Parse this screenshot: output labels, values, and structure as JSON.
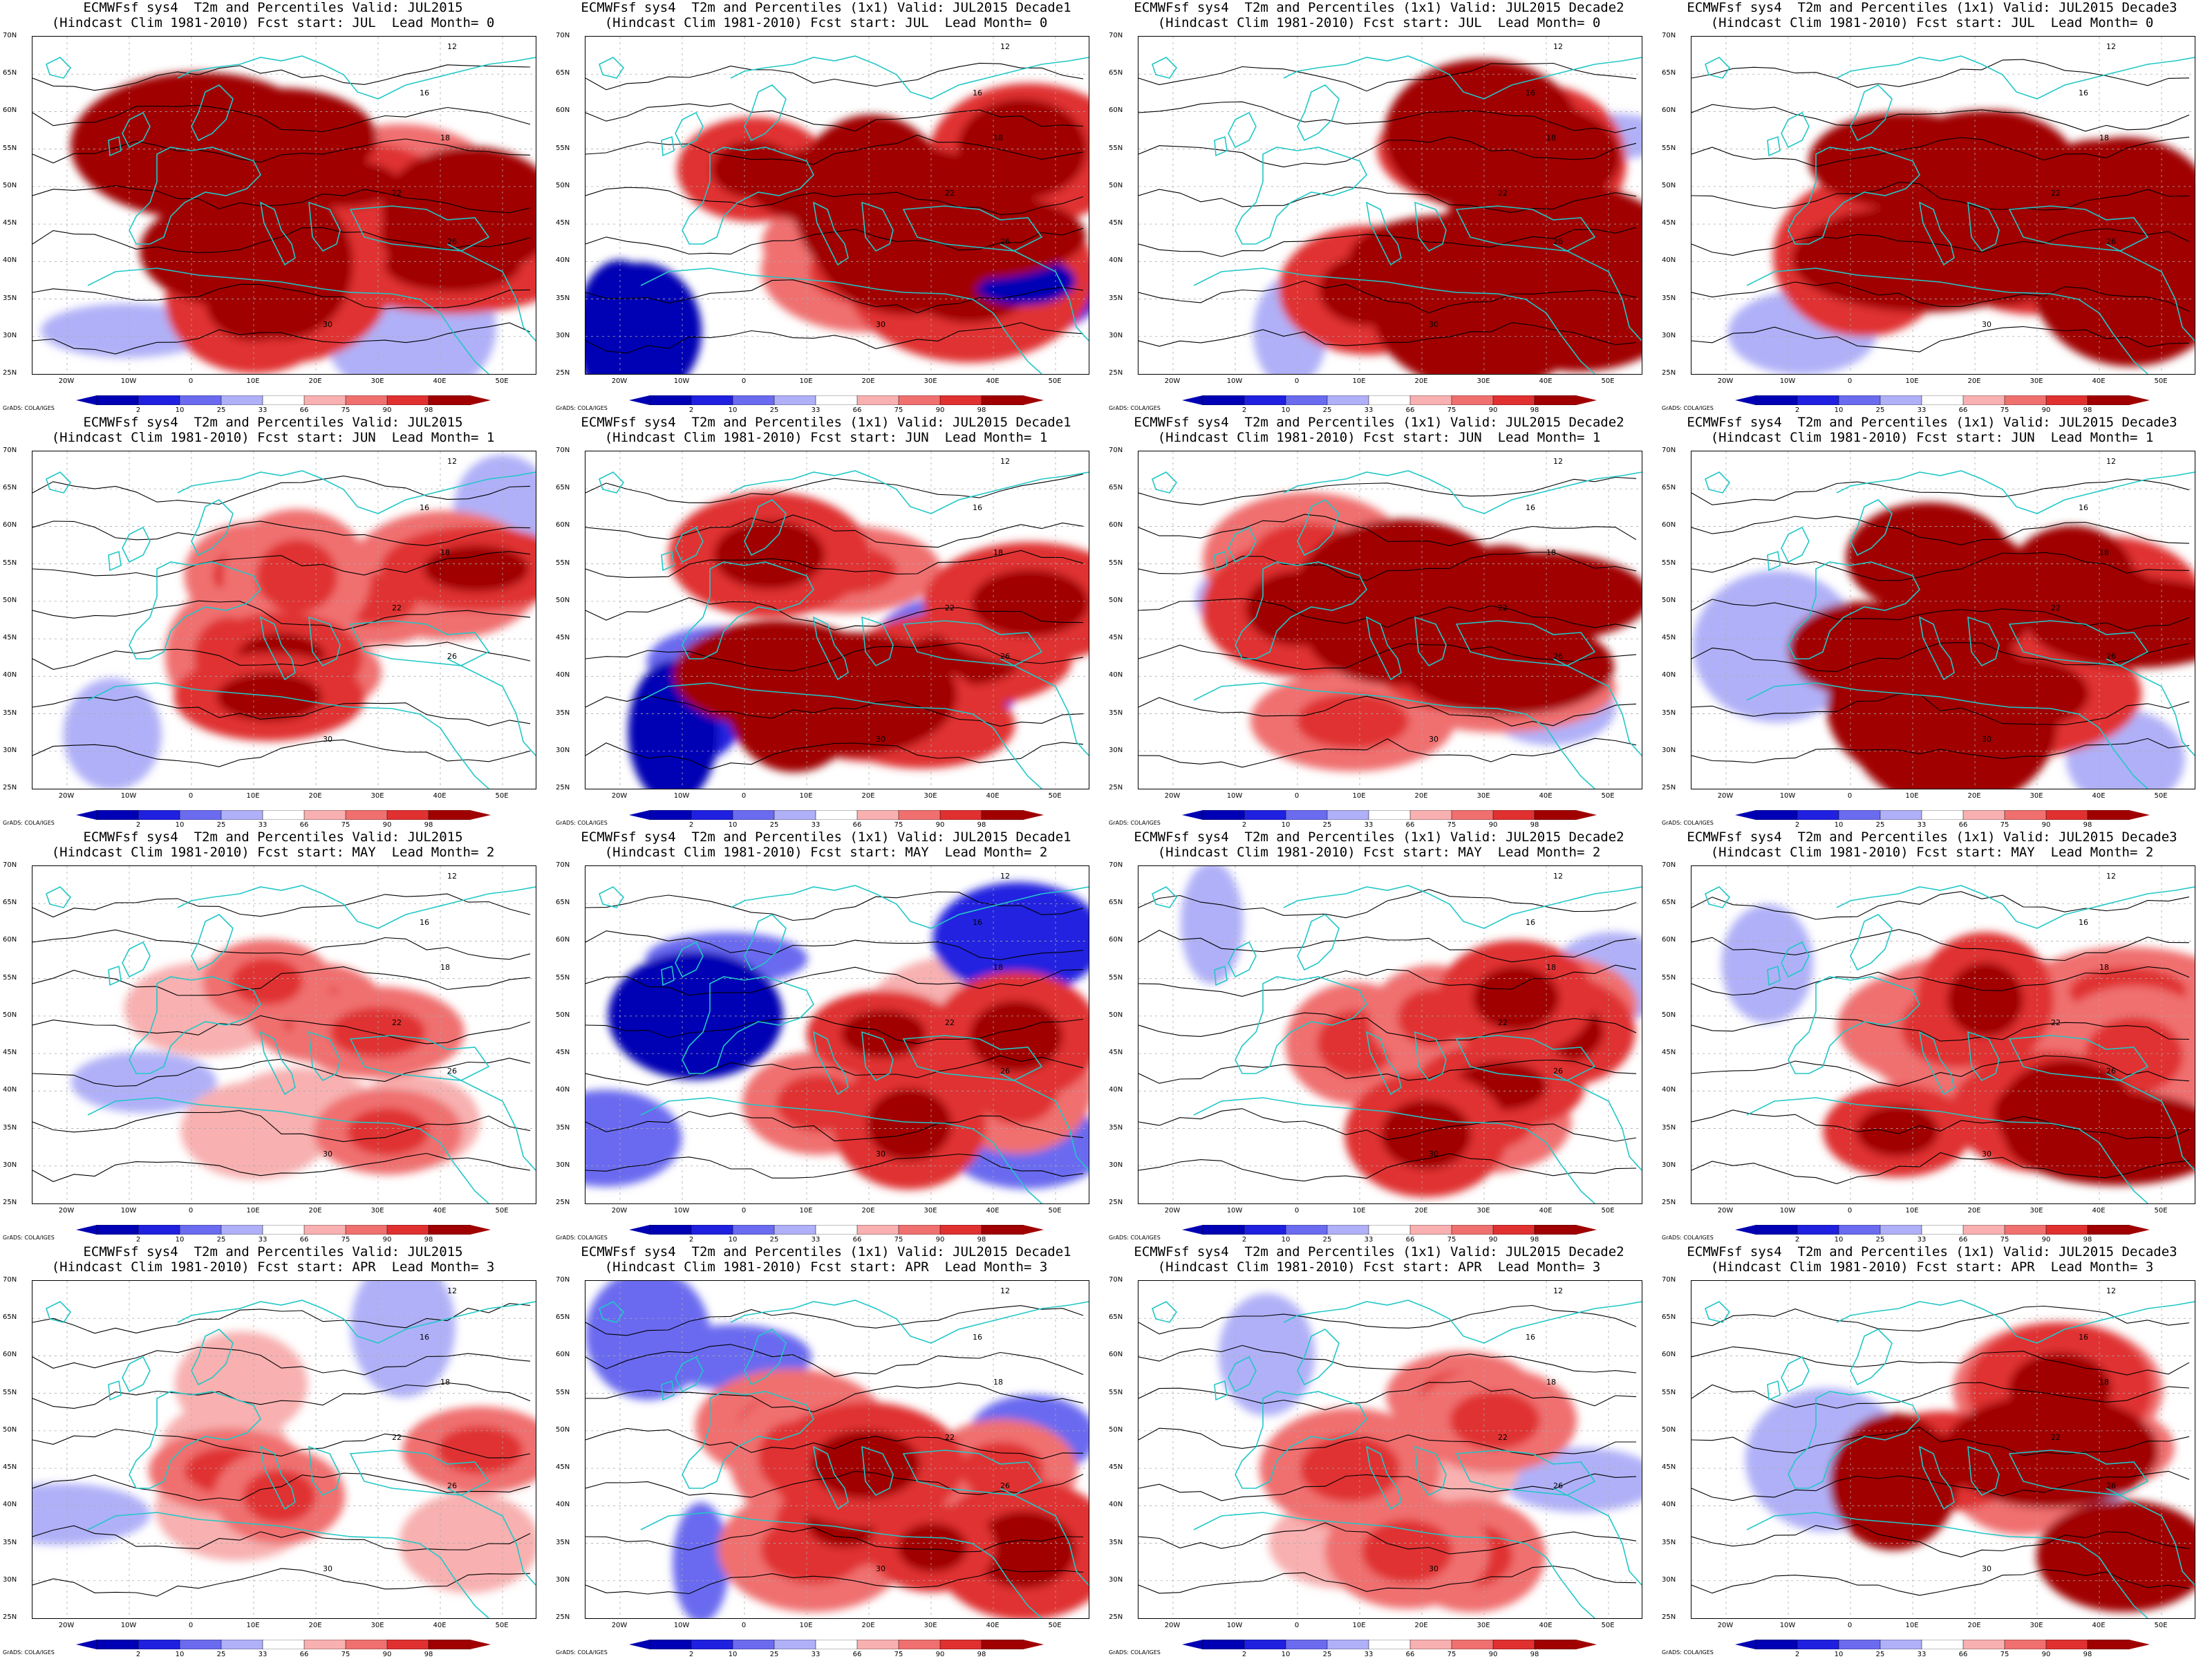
{
  "panels": [
    {
      "title1": "ECMWFsf sys4  T2m and Percentiles Valid: JUL2015",
      "title2": "(Hindcast Clim 1981-2010) Fcst start: JUL  Lead Month= 0",
      "col": 0,
      "row": 0,
      "intensity": 0.85,
      "bias": 1
    },
    {
      "title1": "ECMWFsf sys4  T2m and Percentiles (1x1) Valid: JUL2015 Decade1",
      "title2": "(Hindcast Clim 1981-2010) Fcst start: JUL  Lead Month= 0",
      "col": 1,
      "row": 0,
      "intensity": 0.9,
      "bias": 0
    },
    {
      "title1": "ECMWFsf sys4  T2m and Percentiles (1x1) Valid: JUL2015 Decade2",
      "title2": "(Hindcast Clim 1981-2010) Fcst start: JUL  Lead Month= 0",
      "col": 2,
      "row": 0,
      "intensity": 0.85,
      "bias": 1
    },
    {
      "title1": "ECMWFsf sys4  T2m and Percentiles (1x1) Valid: JUL2015 Decade3",
      "title2": "(Hindcast Clim 1981-2010) Fcst start: JUL  Lead Month= 0",
      "col": 3,
      "row": 0,
      "intensity": 0.85,
      "bias": 1
    },
    {
      "title1": "ECMWFsf sys4  T2m and Percentiles Valid: JUL2015",
      "title2": "(Hindcast Clim 1981-2010) Fcst start: JUN  Lead Month= 1",
      "col": 0,
      "row": 1,
      "intensity": 0.5,
      "bias": 1
    },
    {
      "title1": "ECMWFsf sys4  T2m and Percentiles (1x1) Valid: JUL2015 Decade1",
      "title2": "(Hindcast Clim 1981-2010) Fcst start: JUN  Lead Month= 1",
      "col": 1,
      "row": 1,
      "intensity": 0.6,
      "bias": 0
    },
    {
      "title1": "ECMWFsf sys4  T2m and Percentiles (1x1) Valid: JUL2015 Decade2",
      "title2": "(Hindcast Clim 1981-2010) Fcst start: JUN  Lead Month= 1",
      "col": 2,
      "row": 1,
      "intensity": 0.65,
      "bias": 1
    },
    {
      "title1": "ECMWFsf sys4  T2m and Percentiles (1x1) Valid: JUL2015 Decade3",
      "title2": "(Hindcast Clim 1981-2010) Fcst start: JUN  Lead Month= 1",
      "col": 3,
      "row": 1,
      "intensity": 0.8,
      "bias": 1
    },
    {
      "title1": "ECMWFsf sys4  T2m and Percentiles Valid: JUL2015",
      "title2": "(Hindcast Clim 1981-2010) Fcst start: MAY  Lead Month= 2",
      "col": 0,
      "row": 2,
      "intensity": 0.3,
      "bias": 1
    },
    {
      "title1": "ECMWFsf sys4  T2m and Percentiles (1x1) Valid: JUL2015 Decade1",
      "title2": "(Hindcast Clim 1981-2010) Fcst start: MAY  Lead Month= 2",
      "col": 1,
      "row": 2,
      "intensity": 0.45,
      "bias": 0
    },
    {
      "title1": "ECMWFsf sys4  T2m and Percentiles (1x1) Valid: JUL2015 Decade2",
      "title2": "(Hindcast Clim 1981-2010) Fcst start: MAY  Lead Month= 2",
      "col": 2,
      "row": 2,
      "intensity": 0.4,
      "bias": 1
    },
    {
      "title1": "ECMWFsf sys4  T2m and Percentiles (1x1) Valid: JUL2015 Decade3",
      "title2": "(Hindcast Clim 1981-2010) Fcst start: MAY  Lead Month= 2",
      "col": 3,
      "row": 2,
      "intensity": 0.6,
      "bias": 1
    },
    {
      "title1": "ECMWFsf sys4  T2m and Percentiles Valid: JUL2015",
      "title2": "(Hindcast Clim 1981-2010) Fcst start: APR  Lead Month= 3",
      "col": 0,
      "row": 3,
      "intensity": 0.25,
      "bias": 1
    },
    {
      "title1": "ECMWFsf sys4  T2m and Percentiles (1x1) Valid: JUL2015 Decade1",
      "title2": "(Hindcast Clim 1981-2010) Fcst start: APR  Lead Month= 3",
      "col": 1,
      "row": 3,
      "intensity": 0.55,
      "bias": 0
    },
    {
      "title1": "ECMWFsf sys4  T2m and Percentiles (1x1) Valid: JUL2015 Decade2",
      "title2": "(Hindcast Clim 1981-2010) Fcst start: APR  Lead Month= 3",
      "col": 2,
      "row": 3,
      "intensity": 0.35,
      "bias": 1
    },
    {
      "title1": "ECMWFsf sys4  T2m and Percentiles (1x1) Valid: JUL2015 Decade3",
      "title2": "(Hindcast Clim 1981-2010) Fcst start: APR  Lead Month= 3",
      "col": 3,
      "row": 3,
      "intensity": 0.55,
      "bias": 1
    }
  ],
  "lat_labels": [
    "70N",
    "65N",
    "60N",
    "55N",
    "50N",
    "45N",
    "40N",
    "35N",
    "30N",
    "25N"
  ],
  "lon_labels": [
    "20W",
    "10W",
    "0",
    "10E",
    "20E",
    "30E",
    "40E",
    "50E"
  ],
  "colorbar": {
    "labels": [
      "2",
      "10",
      "25",
      "33",
      "66",
      "75",
      "90",
      "98"
    ],
    "colors": [
      "#0000b4",
      "#2020e0",
      "#6b6bf0",
      "#b0b0f8",
      "#ffffff",
      "#f8b0b0",
      "#f07070",
      "#e03030",
      "#a00000"
    ]
  },
  "contour_labels": [
    "12",
    "16",
    "18",
    "22",
    "26",
    "30"
  ],
  "credit": "GrADS: COLA/IGES",
  "colors": {
    "coast": "#22c7c7",
    "contour": "#000000"
  }
}
